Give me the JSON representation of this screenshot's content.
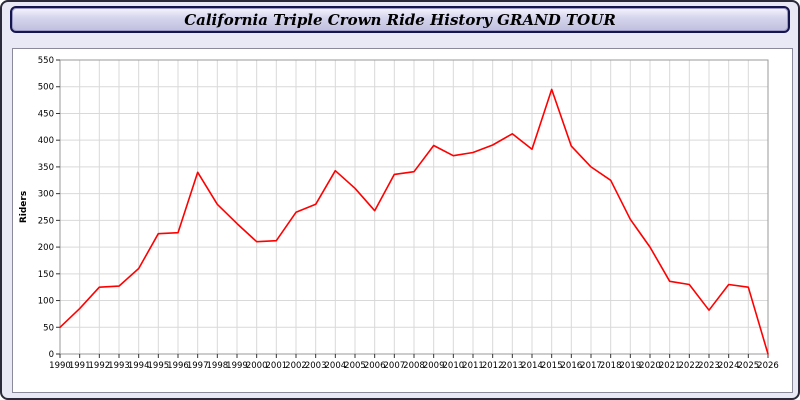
{
  "title": "California Triple Crown Ride History GRAND TOUR",
  "colors": {
    "page_bg": "#e9e9f6",
    "titlebar_border": "#16164f",
    "panel_bg": "#ffffff",
    "panel_border": "#8a8a9a",
    "grid": "#d9d9d9",
    "plot_border": "#9a9a9a",
    "axis": "#333333",
    "line": "#ff0000"
  },
  "chart_data": {
    "type": "line",
    "title": "California Triple Crown Ride History GRAND TOUR",
    "xlabel": "",
    "ylabel": "Riders",
    "ylim": [
      0,
      550
    ],
    "yticks": [
      0,
      50,
      100,
      150,
      200,
      250,
      300,
      350,
      400,
      450,
      500,
      550
    ],
    "grid": true,
    "legend": false,
    "categories": [
      1990,
      1991,
      1992,
      1993,
      1994,
      1995,
      1996,
      1997,
      1998,
      1999,
      2000,
      2001,
      2002,
      2003,
      2004,
      2005,
      2006,
      2007,
      2008,
      2009,
      2010,
      2011,
      2012,
      2013,
      2014,
      2015,
      2016,
      2017,
      2018,
      2019,
      2020,
      2021,
      2022,
      2023,
      2024,
      2025,
      2026
    ],
    "series": [
      {
        "name": "Riders",
        "color": "#ff0000",
        "values": [
          50,
          85,
          125,
          127,
          160,
          225,
          227,
          340,
          280,
          244,
          210,
          212,
          265,
          280,
          343,
          310,
          268,
          336,
          341,
          390,
          371,
          377,
          391,
          412,
          383,
          495,
          389,
          350,
          325,
          252,
          200,
          136,
          130,
          82,
          130,
          125,
          0
        ]
      }
    ]
  }
}
